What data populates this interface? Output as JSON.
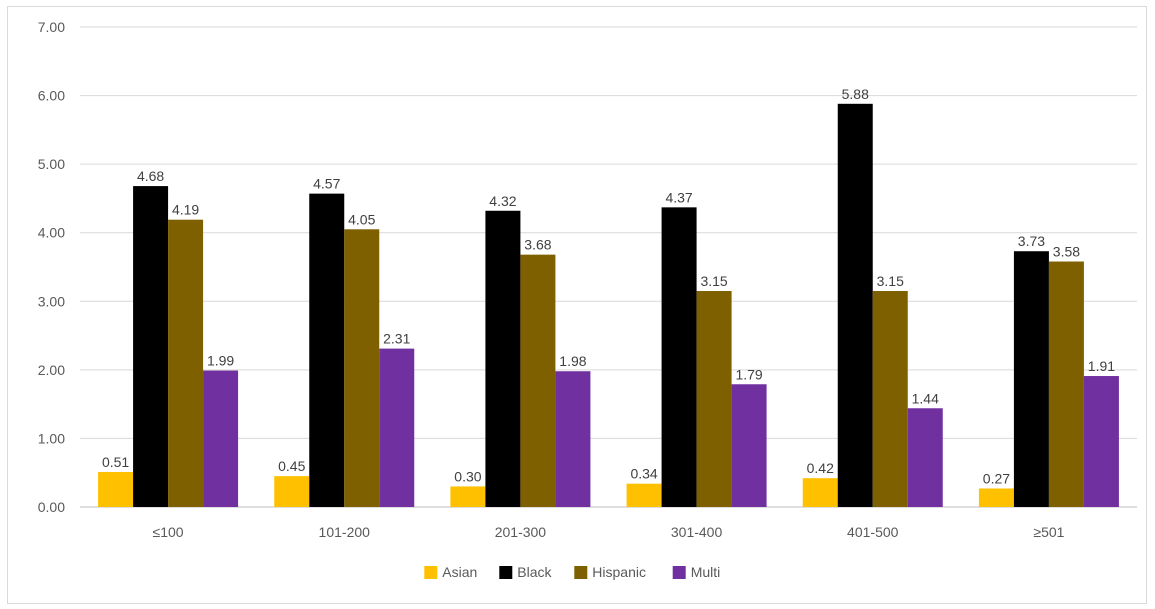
{
  "chart_data": {
    "type": "bar",
    "title": "",
    "xlabel": "",
    "ylabel": "",
    "categories": [
      "≤100",
      "101-200",
      "201-300",
      "301-400",
      "401-500",
      "≥501"
    ],
    "series": [
      {
        "name": "Asian",
        "color": "#FFC000",
        "values": [
          0.51,
          0.45,
          0.3,
          0.34,
          0.42,
          0.27
        ],
        "labels": [
          "0.51",
          "0.45",
          "0.30",
          "0.34",
          "0.42",
          "0.27"
        ]
      },
      {
        "name": "Black",
        "color": "#000000",
        "values": [
          4.68,
          4.57,
          4.32,
          4.37,
          5.88,
          3.73
        ],
        "labels": [
          "4.68",
          "4.57",
          "4.32",
          "4.37",
          "5.88",
          "3.73"
        ]
      },
      {
        "name": "Hispanic",
        "color": "#7F6000",
        "values": [
          4.19,
          4.05,
          3.68,
          3.15,
          3.15,
          3.58
        ],
        "labels": [
          "4.19",
          "4.05",
          "3.68",
          "3.15",
          "3.15",
          "3.58"
        ]
      },
      {
        "name": "Multi",
        "color": "#7030A0",
        "values": [
          1.99,
          2.31,
          1.98,
          1.79,
          1.44,
          1.91
        ],
        "labels": [
          "1.99",
          "2.31",
          "1.98",
          "1.79",
          "1.44",
          "1.91"
        ]
      }
    ],
    "ylim": [
      0,
      7
    ],
    "yticks": [
      "0.00",
      "1.00",
      "2.00",
      "3.00",
      "4.00",
      "5.00",
      "6.00",
      "7.00"
    ],
    "grid": true,
    "legend_position": "bottom"
  }
}
